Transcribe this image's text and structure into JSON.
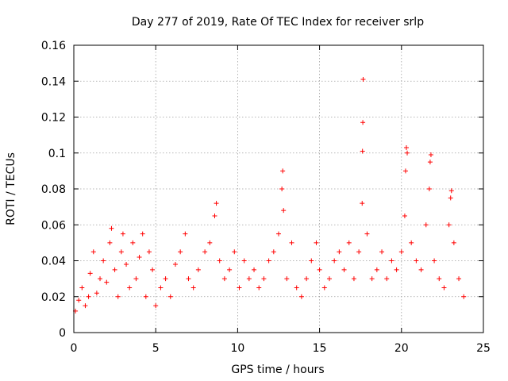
{
  "chart_data": {
    "type": "scatter",
    "title": "Day 277 of 2019, Rate Of TEC Index for receiver srlp",
    "xlabel": "GPS time / hours",
    "ylabel": "ROTI / TECUs",
    "xlim": [
      0,
      25
    ],
    "ylim": [
      0,
      0.16
    ],
    "xticks": [
      0,
      5,
      10,
      15,
      20,
      25
    ],
    "xtick_labels": [
      "0",
      "5",
      "10",
      "15",
      "20",
      "25"
    ],
    "yticks": [
      0,
      0.02,
      0.04,
      0.06,
      0.08,
      0.1,
      0.12,
      0.14,
      0.16
    ],
    "ytick_labels": [
      "0",
      "0.02",
      "0.04",
      "0.06",
      "0.08",
      "0.1",
      "0.12",
      "0.14",
      "0.16"
    ],
    "grid": true,
    "marker": "+",
    "series_color": "#ff0000",
    "series": [
      {
        "name": "ROTI",
        "points": [
          [
            0.1,
            0.012
          ],
          [
            0.3,
            0.018
          ],
          [
            0.5,
            0.025
          ],
          [
            0.7,
            0.015
          ],
          [
            0.9,
            0.02
          ],
          [
            1.0,
            0.033
          ],
          [
            1.2,
            0.045
          ],
          [
            1.4,
            0.022
          ],
          [
            1.6,
            0.03
          ],
          [
            1.8,
            0.04
          ],
          [
            2.0,
            0.028
          ],
          [
            2.2,
            0.05
          ],
          [
            2.3,
            0.058
          ],
          [
            2.5,
            0.035
          ],
          [
            2.7,
            0.02
          ],
          [
            2.9,
            0.045
          ],
          [
            3.0,
            0.055
          ],
          [
            3.2,
            0.038
          ],
          [
            3.4,
            0.025
          ],
          [
            3.6,
            0.05
          ],
          [
            3.8,
            0.03
          ],
          [
            4.0,
            0.042
          ],
          [
            4.2,
            0.055
          ],
          [
            4.4,
            0.02
          ],
          [
            4.6,
            0.045
          ],
          [
            4.8,
            0.035
          ],
          [
            5.0,
            0.015
          ],
          [
            5.3,
            0.025
          ],
          [
            5.6,
            0.03
          ],
          [
            5.9,
            0.02
          ],
          [
            6.2,
            0.038
          ],
          [
            6.5,
            0.045
          ],
          [
            6.8,
            0.055
          ],
          [
            7.0,
            0.03
          ],
          [
            7.3,
            0.025
          ],
          [
            7.6,
            0.035
          ],
          [
            8.0,
            0.045
          ],
          [
            8.3,
            0.05
          ],
          [
            8.6,
            0.065
          ],
          [
            8.7,
            0.072
          ],
          [
            8.9,
            0.04
          ],
          [
            9.2,
            0.03
          ],
          [
            9.5,
            0.035
          ],
          [
            9.8,
            0.045
          ],
          [
            10.1,
            0.025
          ],
          [
            10.4,
            0.04
          ],
          [
            10.7,
            0.03
          ],
          [
            11.0,
            0.035
          ],
          [
            11.3,
            0.025
          ],
          [
            11.6,
            0.03
          ],
          [
            11.9,
            0.04
          ],
          [
            12.2,
            0.045
          ],
          [
            12.5,
            0.055
          ],
          [
            12.7,
            0.08
          ],
          [
            12.75,
            0.09
          ],
          [
            12.8,
            0.068
          ],
          [
            13.0,
            0.03
          ],
          [
            13.3,
            0.05
          ],
          [
            13.6,
            0.025
          ],
          [
            13.9,
            0.02
          ],
          [
            14.2,
            0.03
          ],
          [
            14.5,
            0.04
          ],
          [
            14.8,
            0.05
          ],
          [
            15.0,
            0.035
          ],
          [
            15.3,
            0.025
          ],
          [
            15.6,
            0.03
          ],
          [
            15.9,
            0.04
          ],
          [
            16.2,
            0.045
          ],
          [
            16.5,
            0.035
          ],
          [
            16.8,
            0.05
          ],
          [
            17.1,
            0.03
          ],
          [
            17.4,
            0.045
          ],
          [
            17.6,
            0.072
          ],
          [
            17.62,
            0.101
          ],
          [
            17.64,
            0.117
          ],
          [
            17.66,
            0.141
          ],
          [
            17.9,
            0.055
          ],
          [
            18.2,
            0.03
          ],
          [
            18.5,
            0.035
          ],
          [
            18.8,
            0.045
          ],
          [
            19.1,
            0.03
          ],
          [
            19.4,
            0.04
          ],
          [
            19.7,
            0.035
          ],
          [
            20.0,
            0.045
          ],
          [
            20.2,
            0.065
          ],
          [
            20.25,
            0.09
          ],
          [
            20.3,
            0.103
          ],
          [
            20.35,
            0.1
          ],
          [
            20.6,
            0.05
          ],
          [
            20.9,
            0.04
          ],
          [
            21.2,
            0.035
          ],
          [
            21.5,
            0.06
          ],
          [
            21.7,
            0.08
          ],
          [
            21.75,
            0.095
          ],
          [
            21.8,
            0.099
          ],
          [
            22.0,
            0.04
          ],
          [
            22.3,
            0.03
          ],
          [
            22.6,
            0.025
          ],
          [
            22.9,
            0.06
          ],
          [
            23.0,
            0.075
          ],
          [
            23.05,
            0.079
          ],
          [
            23.2,
            0.05
          ],
          [
            23.5,
            0.03
          ],
          [
            23.8,
            0.02
          ]
        ]
      }
    ]
  }
}
